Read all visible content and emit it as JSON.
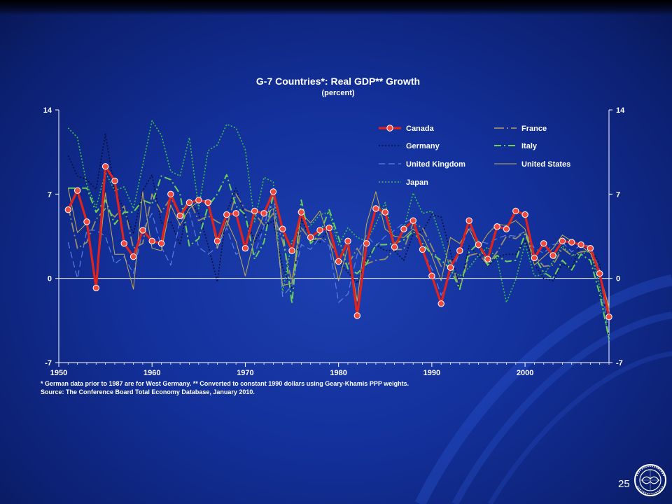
{
  "slide": {
    "footnote_line1": "* German data prior to 1987 are for West Germany.  ** Converted to constant 1990 dollars using Geary-Khamis PPP weights.",
    "footnote_line2": "Source:  The Conference Board Total Economy Database, January 2010.",
    "page_number": "25",
    "logo": "imf-seal-icon"
  },
  "colors": {
    "canada": "#e0231d",
    "canada_marker": "#f04b3c",
    "france": "#9a8f6a",
    "germany": "#0a0f3a",
    "italy": "#6bd05a",
    "united_kingdom": "#5b7fe0",
    "united_states": "#c7ae4a",
    "japan": "#3cc04a",
    "axis": "#ffffff"
  },
  "chart_data": {
    "type": "line",
    "title": "G-7 Countries*:  Real GDP** Growth",
    "subtitle": "(percent)",
    "xlabel": "",
    "ylabel": "",
    "xlim": [
      1950,
      2009
    ],
    "ylim": [
      -7,
      14
    ],
    "yticks": [
      -7,
      0,
      7,
      14
    ],
    "xticks": [
      1950,
      1960,
      1970,
      1980,
      1990,
      2000
    ],
    "grid": false,
    "legend_position": "top-right",
    "x": [
      1951,
      1952,
      1953,
      1954,
      1955,
      1956,
      1957,
      1958,
      1959,
      1960,
      1961,
      1962,
      1963,
      1964,
      1965,
      1966,
      1967,
      1968,
      1969,
      1970,
      1971,
      1972,
      1973,
      1974,
      1975,
      1976,
      1977,
      1978,
      1979,
      1980,
      1981,
      1982,
      1983,
      1984,
      1985,
      1986,
      1987,
      1988,
      1989,
      1990,
      1991,
      1992,
      1993,
      1994,
      1995,
      1996,
      1997,
      1998,
      1999,
      2000,
      2001,
      2002,
      2003,
      2004,
      2005,
      2006,
      2007,
      2008,
      2009
    ],
    "series": [
      {
        "name": "Canada",
        "key": "canada",
        "style": "solid-marker",
        "values": [
          5.7,
          7.3,
          4.7,
          -0.8,
          9.3,
          8.1,
          2.9,
          1.8,
          4.0,
          3.1,
          2.9,
          7.0,
          5.2,
          6.3,
          6.5,
          6.3,
          3.1,
          5.3,
          5.4,
          2.5,
          5.6,
          5.4,
          7.2,
          4.1,
          2.3,
          5.5,
          3.4,
          4.0,
          4.2,
          1.4,
          3.1,
          -3.1,
          2.9,
          5.8,
          5.5,
          2.6,
          4.1,
          4.8,
          2.4,
          0.2,
          -2.1,
          0.9,
          2.3,
          4.8,
          2.8,
          1.6,
          4.3,
          4.1,
          5.6,
          5.3,
          1.7,
          2.9,
          1.9,
          3.1,
          3.0,
          2.8,
          2.5,
          0.4,
          -3.2
        ]
      },
      {
        "name": "France",
        "key": "france",
        "style": "dashdot-long",
        "values": [
          6.0,
          2.5,
          3.0,
          4.9,
          5.8,
          5.1,
          6.0,
          2.5,
          2.9,
          7.0,
          5.5,
          6.7,
          5.3,
          6.5,
          4.8,
          5.2,
          4.7,
          4.3,
          7.0,
          5.7,
          5.4,
          4.4,
          5.4,
          3.1,
          -0.3,
          4.2,
          3.2,
          3.3,
          3.2,
          1.6,
          1.1,
          2.5,
          1.2,
          1.5,
          1.6,
          2.4,
          2.4,
          4.6,
          4.2,
          2.6,
          1.0,
          1.5,
          -0.9,
          1.9,
          2.1,
          1.1,
          2.2,
          3.5,
          3.3,
          3.9,
          1.9,
          1.0,
          1.1,
          2.5,
          1.9,
          2.2,
          2.3,
          0.1,
          -2.6
        ]
      },
      {
        "name": "Germany",
        "key": "germany",
        "style": "dotted",
        "values": [
          10.2,
          8.5,
          8.2,
          7.4,
          12.0,
          7.3,
          5.7,
          3.7,
          7.3,
          8.6,
          4.6,
          4.7,
          2.8,
          6.6,
          5.4,
          2.8,
          -0.3,
          5.5,
          7.5,
          5.1,
          3.1,
          4.3,
          4.8,
          0.9,
          -0.9,
          4.9,
          3.3,
          3.0,
          4.2,
          1.4,
          0.5,
          -0.4,
          1.6,
          2.8,
          2.3,
          2.3,
          1.5,
          3.7,
          3.9,
          5.3,
          5.1,
          2.2,
          -0.8,
          2.7,
          1.9,
          1.0,
          1.8,
          2.0,
          2.0,
          3.2,
          1.2,
          0.0,
          -0.2,
          1.2,
          0.8,
          3.0,
          2.5,
          1.2,
          -4.9
        ]
      },
      {
        "name": "Italy",
        "key": "italy",
        "style": "dashdot",
        "values": [
          7.5,
          7.5,
          7.5,
          5.5,
          6.5,
          4.5,
          5.5,
          5.5,
          6.5,
          6.2,
          8.5,
          8.2,
          7.0,
          2.7,
          3.3,
          6.0,
          7.0,
          8.6,
          6.0,
          5.3,
          1.6,
          3.0,
          7.0,
          4.0,
          -2.1,
          6.5,
          2.9,
          3.7,
          5.7,
          3.4,
          0.8,
          0.4,
          1.2,
          2.8,
          2.8,
          2.9,
          3.2,
          3.9,
          2.9,
          2.0,
          1.5,
          0.8,
          -0.9,
          2.2,
          2.9,
          1.1,
          1.9,
          1.4,
          1.5,
          3.7,
          1.8,
          0.5,
          0.0,
          1.5,
          0.7,
          2.0,
          1.5,
          -1.3,
          -5.0
        ]
      },
      {
        "name": "United Kingdom",
        "key": "united_kingdom",
        "style": "dashed",
        "values": [
          3.0,
          0.0,
          4.0,
          4.0,
          3.5,
          1.2,
          1.8,
          0.4,
          4.0,
          5.4,
          2.6,
          1.1,
          4.8,
          5.5,
          2.6,
          2.0,
          2.6,
          4.2,
          2.0,
          2.4,
          2.0,
          4.3,
          7.1,
          -1.5,
          -0.6,
          2.8,
          2.4,
          3.4,
          2.7,
          -2.0,
          -1.3,
          2.0,
          3.6,
          2.7,
          3.5,
          4.0,
          4.6,
          5.0,
          2.3,
          0.8,
          -1.4,
          0.2,
          2.2,
          4.3,
          3.1,
          2.9,
          3.3,
          3.6,
          3.5,
          3.9,
          2.5,
          2.1,
          2.8,
          3.0,
          2.2,
          2.8,
          2.7,
          0.7,
          -4.9
        ]
      },
      {
        "name": "United States",
        "key": "united_states",
        "style": "solid-thin",
        "values": [
          7.5,
          3.8,
          4.6,
          -0.6,
          7.1,
          2.0,
          2.0,
          -0.9,
          7.2,
          2.5,
          2.3,
          6.1,
          4.4,
          5.8,
          6.4,
          6.5,
          2.5,
          4.8,
          3.1,
          0.2,
          3.4,
          5.3,
          5.8,
          -0.6,
          -0.4,
          5.4,
          4.6,
          5.6,
          3.2,
          -0.2,
          2.6,
          -1.9,
          4.5,
          7.2,
          4.1,
          3.5,
          3.4,
          4.1,
          3.5,
          1.9,
          -0.2,
          3.4,
          2.9,
          4.1,
          2.5,
          3.7,
          4.5,
          4.4,
          4.8,
          4.1,
          1.1,
          1.8,
          2.5,
          3.6,
          3.1,
          2.7,
          2.1,
          0.4,
          -2.4
        ]
      },
      {
        "name": "Japan",
        "key": "japan",
        "style": "dotted",
        "values": [
          12.5,
          11.7,
          7.8,
          5.9,
          8.8,
          7.3,
          7.6,
          5.8,
          9.4,
          13.1,
          11.9,
          8.9,
          8.5,
          11.7,
          5.8,
          10.6,
          11.1,
          12.8,
          12.5,
          10.7,
          4.7,
          8.4,
          8.0,
          -1.2,
          3.1,
          4.0,
          4.4,
          5.3,
          5.5,
          2.8,
          4.2,
          3.4,
          3.1,
          4.5,
          6.3,
          2.8,
          4.1,
          7.1,
          5.4,
          5.6,
          3.3,
          0.8,
          0.2,
          0.9,
          1.9,
          2.6,
          1.6,
          -2.0,
          -0.1,
          2.9,
          0.2,
          0.3,
          1.4,
          2.7,
          1.9,
          2.0,
          2.3,
          -0.7,
          -5.2
        ]
      }
    ]
  }
}
